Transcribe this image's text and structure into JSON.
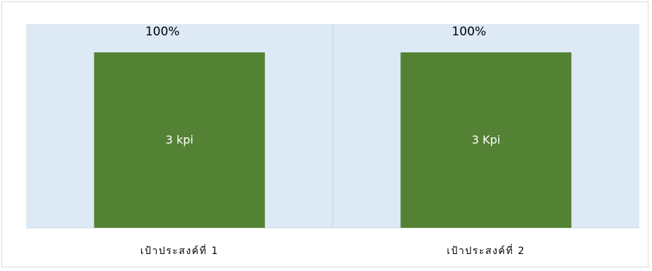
{
  "chart_data": {
    "type": "bar",
    "categories": [
      "เป้าประสงค์ที่  1",
      "เป้าประสงค์ที่  2"
    ],
    "values": [
      100,
      100
    ],
    "value_labels": [
      "100%",
      "100%"
    ],
    "bar_labels": [
      "3 kpi",
      "3 Kpi"
    ],
    "ylim": [
      0,
      100
    ],
    "unit": "%",
    "grid": false,
    "legend": "none"
  },
  "colors": {
    "plot_background": "#dde9f5",
    "bar": "#548235",
    "divider": "#c9d6e3",
    "frame": "#d9d9d9"
  }
}
